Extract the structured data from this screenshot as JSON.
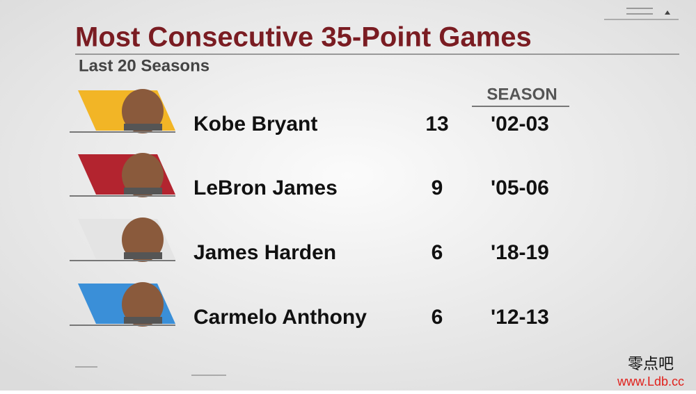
{
  "header": {
    "title": "Most Consecutive 35-Point Games",
    "subtitle": "Last 20 Seasons"
  },
  "table": {
    "columns": {
      "season": "SEASON"
    },
    "rows": [
      {
        "player": "Kobe Bryant",
        "games": 13,
        "season": "'02-03",
        "color": "#f2b526"
      },
      {
        "player": "LeBron James",
        "games": 9,
        "season": "'05-06",
        "color": "#b3242f"
      },
      {
        "player": "James Harden",
        "games": 6,
        "season": "'18-19",
        "color": "#e4e4e4"
      },
      {
        "player": "Carmelo Anthony",
        "games": 6,
        "season": "'12-13",
        "color": "#3a8fd8"
      }
    ]
  },
  "watermark": {
    "line1": "零点吧",
    "line2": "www.Ldb.cc"
  }
}
